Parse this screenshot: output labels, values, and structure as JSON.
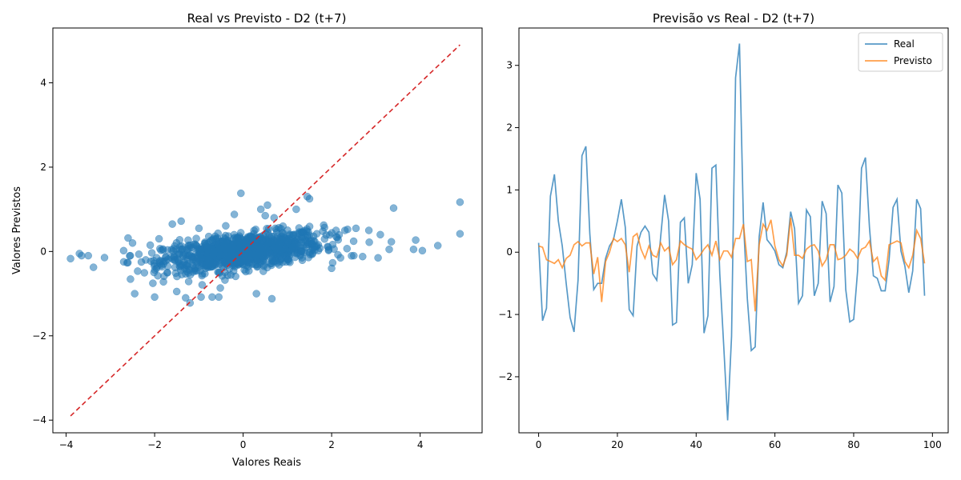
{
  "chart_data": [
    {
      "type": "scatter",
      "title": "Real vs Previsto - D2 (t+7)",
      "xlabel": "Valores Reais",
      "ylabel": "Valores Previstos",
      "xlim": [
        -4.3,
        5.4
      ],
      "ylim": [
        -4.3,
        5.3
      ],
      "xticks": [
        -4,
        -2,
        0,
        2,
        4
      ],
      "yticks": [
        -4,
        -2,
        0,
        2,
        4
      ],
      "grid": false,
      "point_color": "#1f77b4",
      "reference_line": {
        "from": [
          -3.9,
          -3.9
        ],
        "to": [
          4.9,
          4.9
        ],
        "color": "#d62728",
        "style": "dashed"
      },
      "points": [
        [
          -3.9,
          -0.17
        ],
        [
          -3.7,
          -0.05
        ],
        [
          -3.65,
          -0.1
        ],
        [
          -3.5,
          -0.1
        ],
        [
          -2.7,
          0.02
        ],
        [
          -2.6,
          0.32
        ],
        [
          -2.55,
          -0.1
        ],
        [
          -2.5,
          0.2
        ],
        [
          -2.45,
          -1.0
        ],
        [
          -2.3,
          -0.25
        ],
        [
          -2.2,
          -0.2
        ],
        [
          -2.1,
          0.15
        ],
        [
          -2.0,
          -1.08
        ],
        [
          -1.9,
          0.3
        ],
        [
          -1.8,
          -0.72
        ],
        [
          -1.6,
          0.65
        ],
        [
          -1.5,
          -0.95
        ],
        [
          -1.4,
          0.72
        ],
        [
          -1.3,
          -1.1
        ],
        [
          -1.2,
          -1.22
        ],
        [
          -1.0,
          0.55
        ],
        [
          -0.95,
          -1.08
        ],
        [
          -0.7,
          -1.08
        ],
        [
          -0.55,
          -1.08
        ],
        [
          -0.2,
          0.88
        ],
        [
          -0.05,
          1.38
        ],
        [
          0.3,
          -1.0
        ],
        [
          0.4,
          1.0
        ],
        [
          0.5,
          0.85
        ],
        [
          0.55,
          1.1
        ],
        [
          0.65,
          -1.12
        ],
        [
          0.7,
          0.8
        ],
        [
          0.9,
          0.6
        ],
        [
          1.2,
          1.0
        ],
        [
          1.45,
          1.3
        ],
        [
          1.5,
          1.25
        ],
        [
          1.8,
          0.48
        ],
        [
          2.0,
          -0.4
        ],
        [
          2.1,
          0.5
        ],
        [
          2.2,
          -0.15
        ],
        [
          2.3,
          0.5
        ],
        [
          2.5,
          -0.1
        ],
        [
          2.55,
          0.55
        ],
        [
          2.7,
          -0.12
        ],
        [
          2.85,
          0.22
        ],
        [
          3.05,
          -0.15
        ],
        [
          3.1,
          0.4
        ],
        [
          3.3,
          0.05
        ],
        [
          3.35,
          0.23
        ],
        [
          3.4,
          1.03
        ],
        [
          3.85,
          0.05
        ],
        [
          3.9,
          0.27
        ],
        [
          4.05,
          0.02
        ],
        [
          4.4,
          0.14
        ],
        [
          4.9,
          1.17
        ],
        [
          4.9,
          0.42
        ]
      ]
    },
    {
      "type": "line",
      "title": "Previsão vs Real - D2 (t+7)",
      "xlim": [
        -5,
        104
      ],
      "ylim": [
        -2.9,
        3.6
      ],
      "xticks": [
        0,
        20,
        40,
        60,
        80,
        100
      ],
      "yticks": [
        -2,
        -1,
        0,
        1,
        2,
        3
      ],
      "grid": false,
      "legend": "top-right",
      "x_start": 0,
      "series": [
        {
          "name": "Real",
          "color": "#1f77b4",
          "values": [
            0.15,
            -1.1,
            -0.9,
            0.9,
            1.25,
            0.5,
            0.1,
            -0.5,
            -1.05,
            -1.28,
            -0.45,
            1.55,
            1.7,
            0.3,
            -0.6,
            -0.5,
            -0.5,
            -0.1,
            0.1,
            0.2,
            0.5,
            0.85,
            0.4,
            -0.92,
            -1.02,
            0.1,
            0.32,
            0.42,
            0.32,
            -0.35,
            -0.45,
            0.25,
            0.92,
            0.5,
            -1.17,
            -1.13,
            0.48,
            0.55,
            -0.5,
            -0.2,
            1.27,
            0.85,
            -1.3,
            -1.02,
            1.35,
            1.4,
            -0.35,
            -1.5,
            -2.7,
            -1.35,
            2.8,
            3.35,
            0.5,
            -0.75,
            -1.58,
            -1.52,
            0.25,
            0.8,
            0.2,
            0.12,
            0.02,
            -0.2,
            -0.25,
            0.0,
            0.65,
            0.38,
            -0.82,
            -0.7,
            0.68,
            0.57,
            -0.7,
            -0.5,
            0.82,
            0.62,
            -0.8,
            -0.55,
            1.08,
            0.95,
            -0.6,
            -1.12,
            -1.08,
            -0.3,
            1.35,
            1.52,
            0.4,
            -0.38,
            -0.42,
            -0.62,
            -0.62,
            -0.12,
            0.72,
            0.85,
            0.02,
            -0.22,
            -0.65,
            -0.3,
            0.85,
            0.7,
            -0.7
          ]
        },
        {
          "name": "Previsto",
          "color": "#ff7f0e",
          "values": [
            0.1,
            0.08,
            -0.12,
            -0.15,
            -0.18,
            -0.12,
            -0.25,
            -0.1,
            -0.05,
            0.12,
            0.17,
            0.1,
            0.15,
            0.15,
            -0.35,
            -0.08,
            -0.8,
            -0.15,
            0.0,
            0.22,
            0.17,
            0.22,
            0.12,
            -0.32,
            0.25,
            0.3,
            0.05,
            -0.1,
            0.1,
            -0.05,
            -0.08,
            0.15,
            0.02,
            0.08,
            -0.2,
            -0.12,
            0.18,
            0.12,
            0.08,
            0.05,
            -0.12,
            -0.05,
            0.05,
            0.12,
            -0.05,
            0.18,
            -0.12,
            0.02,
            0.02,
            -0.08,
            0.22,
            0.22,
            0.45,
            -0.15,
            -0.12,
            -0.95,
            0.12,
            0.45,
            0.35,
            0.52,
            0.1,
            -0.12,
            -0.22,
            -0.05,
            0.55,
            -0.05,
            -0.05,
            -0.1,
            0.05,
            0.1,
            0.12,
            0.02,
            -0.22,
            -0.12,
            0.12,
            0.12,
            -0.12,
            -0.1,
            -0.05,
            0.05,
            0.0,
            -0.1,
            0.05,
            0.08,
            0.18,
            -0.15,
            -0.08,
            -0.38,
            -0.45,
            0.12,
            0.15,
            0.18,
            0.15,
            -0.15,
            -0.25,
            -0.05,
            0.35,
            0.22,
            -0.18
          ]
        }
      ]
    }
  ]
}
